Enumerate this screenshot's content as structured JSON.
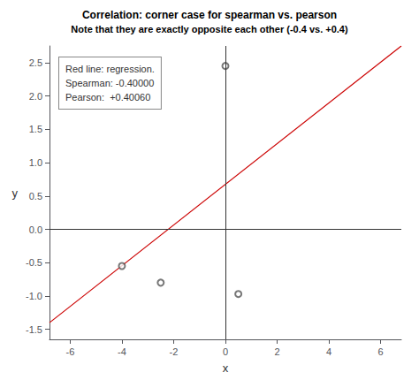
{
  "chart_data": {
    "type": "scatter",
    "title": "Correlation: corner case for spearman vs. pearson",
    "subtitle": "Note that they are exactly opposite each other (-0.4 vs. +0.4)",
    "xlabel": "x",
    "ylabel": "y",
    "xlim": [
      -6.8,
      6.8
    ],
    "ylim": [
      -1.65,
      2.75
    ],
    "xticks": [
      -6,
      -4,
      -2,
      0,
      2,
      4,
      6
    ],
    "yticks": [
      -1.5,
      {
        "value": -1.0,
        "label": "-1.0"
      },
      -0.5,
      {
        "value": 0.0,
        "label": "0.0"
      },
      0.5,
      {
        "value": 1.0,
        "label": "1.0"
      },
      1.5,
      {
        "value": 2.0,
        "label": "2.0"
      },
      2.5
    ],
    "grid": false,
    "series": [
      {
        "type": "line",
        "color": "#CC0000",
        "x": [
          -6.8,
          6.8
        ],
        "values": [
          -1.4,
          2.75
        ]
      },
      {
        "type": "scatter",
        "color": "#555555",
        "marker": "open_circle",
        "x": [
          0.0,
          -4.0,
          -2.5,
          0.5
        ],
        "values": [
          2.45,
          -0.55,
          -0.8,
          -0.97
        ]
      }
    ],
    "reference_lines": {
      "x": 0.0,
      "y": 0.0,
      "color": "#333333"
    },
    "annotation": "Red line: regression.\nSpearman: -0.40000\nPearson:  +0.40060"
  }
}
